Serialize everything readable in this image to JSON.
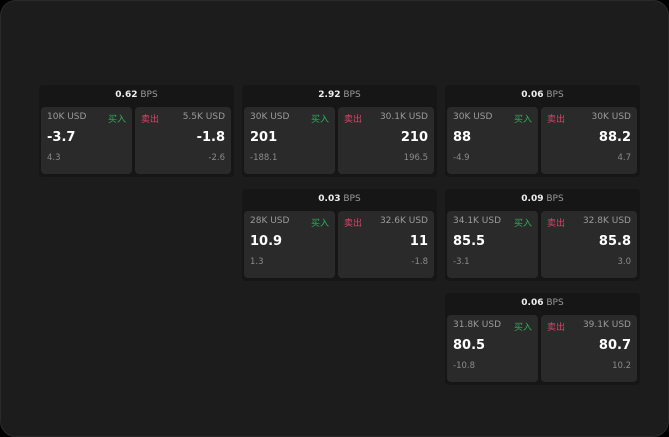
{
  "labels": {
    "buy": "买入",
    "sell": "卖出",
    "unit": "BPS"
  },
  "colors": {
    "buy": "#2fae5e",
    "sell": "#d9436a",
    "background": "#1c1c1c"
  },
  "cards": [
    {
      "spread": "0.62",
      "bid": {
        "size": "10K USD",
        "price": "-3.7",
        "change": "4.3"
      },
      "ask": {
        "size": "5.5K USD",
        "price": "-1.8",
        "change": "-2.6"
      }
    },
    {
      "spread": "2.92",
      "bid": {
        "size": "30K USD",
        "price": "201",
        "change": "-188.1"
      },
      "ask": {
        "size": "30.1K USD",
        "price": "210",
        "change": "196.5"
      }
    },
    {
      "spread": "0.06",
      "bid": {
        "size": "30K USD",
        "price": "88",
        "change": "-4.9"
      },
      "ask": {
        "size": "30K USD",
        "price": "88.2",
        "change": "4.7"
      }
    },
    {
      "spread": "0.03",
      "bid": {
        "size": "28K USD",
        "price": "10.9",
        "change": "1.3"
      },
      "ask": {
        "size": "32.6K USD",
        "price": "11",
        "change": "-1.8"
      }
    },
    {
      "spread": "0.09",
      "bid": {
        "size": "34.1K USD",
        "price": "85.5",
        "change": "-3.1"
      },
      "ask": {
        "size": "32.8K USD",
        "price": "85.8",
        "change": "3.0"
      }
    },
    {
      "spread": "0.06",
      "bid": {
        "size": "31.8K USD",
        "price": "80.5",
        "change": "-10.8"
      },
      "ask": {
        "size": "39.1K USD",
        "price": "80.7",
        "change": "10.2"
      }
    }
  ]
}
